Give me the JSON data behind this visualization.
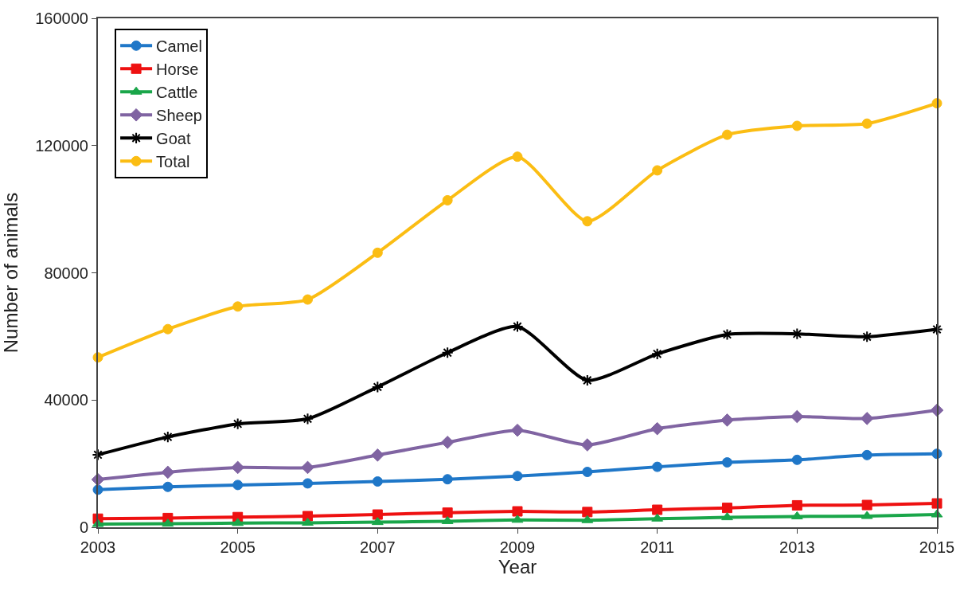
{
  "chart_data": {
    "type": "line",
    "xlabel": "Year",
    "ylabel": "Number of animals",
    "x": [
      2003,
      2004,
      2005,
      2006,
      2007,
      2008,
      2009,
      2010,
      2011,
      2012,
      2013,
      2014,
      2015
    ],
    "xlim": [
      2003,
      2015
    ],
    "xticks": [
      2003,
      2005,
      2007,
      2009,
      2011,
      2013,
      2015
    ],
    "ylim": [
      0,
      160000
    ],
    "yticks": [
      0,
      40000,
      80000,
      120000,
      160000
    ],
    "legend": "top left",
    "series": [
      {
        "name": "Camel",
        "color": "#1f77c8",
        "marker": "circle",
        "values": [
          11800,
          12700,
          13300,
          13800,
          14400,
          15100,
          16100,
          17400,
          19000,
          20400,
          21200,
          22700,
          23100
        ]
      },
      {
        "name": "Horse",
        "color": "#ee1111",
        "marker": "square",
        "values": [
          2700,
          2900,
          3200,
          3500,
          4000,
          4600,
          5000,
          4800,
          5500,
          6100,
          6900,
          7000,
          7500
        ]
      },
      {
        "name": "Cattle",
        "color": "#1aa64a",
        "marker": "triangle",
        "values": [
          1000,
          1100,
          1300,
          1400,
          1600,
          1900,
          2300,
          2200,
          2700,
          3100,
          3400,
          3500,
          4000
        ]
      },
      {
        "name": "Sheep",
        "color": "#8064a2",
        "marker": "diamond",
        "values": [
          15000,
          17300,
          18800,
          18800,
          22700,
          26700,
          30500,
          25900,
          31000,
          33700,
          34800,
          34200,
          36800
        ]
      },
      {
        "name": "Goat",
        "color": "#000000",
        "marker": "cross",
        "values": [
          22800,
          28400,
          32500,
          34100,
          44100,
          54900,
          63100,
          46200,
          54500,
          60600,
          60800,
          59900,
          62200
        ]
      },
      {
        "name": "Total",
        "color": "#fbbd13",
        "marker": "circle",
        "values": [
          53400,
          62300,
          69400,
          71600,
          86300,
          102800,
          116500,
          96200,
          112200,
          123400,
          126200,
          126900,
          133300
        ]
      }
    ]
  }
}
